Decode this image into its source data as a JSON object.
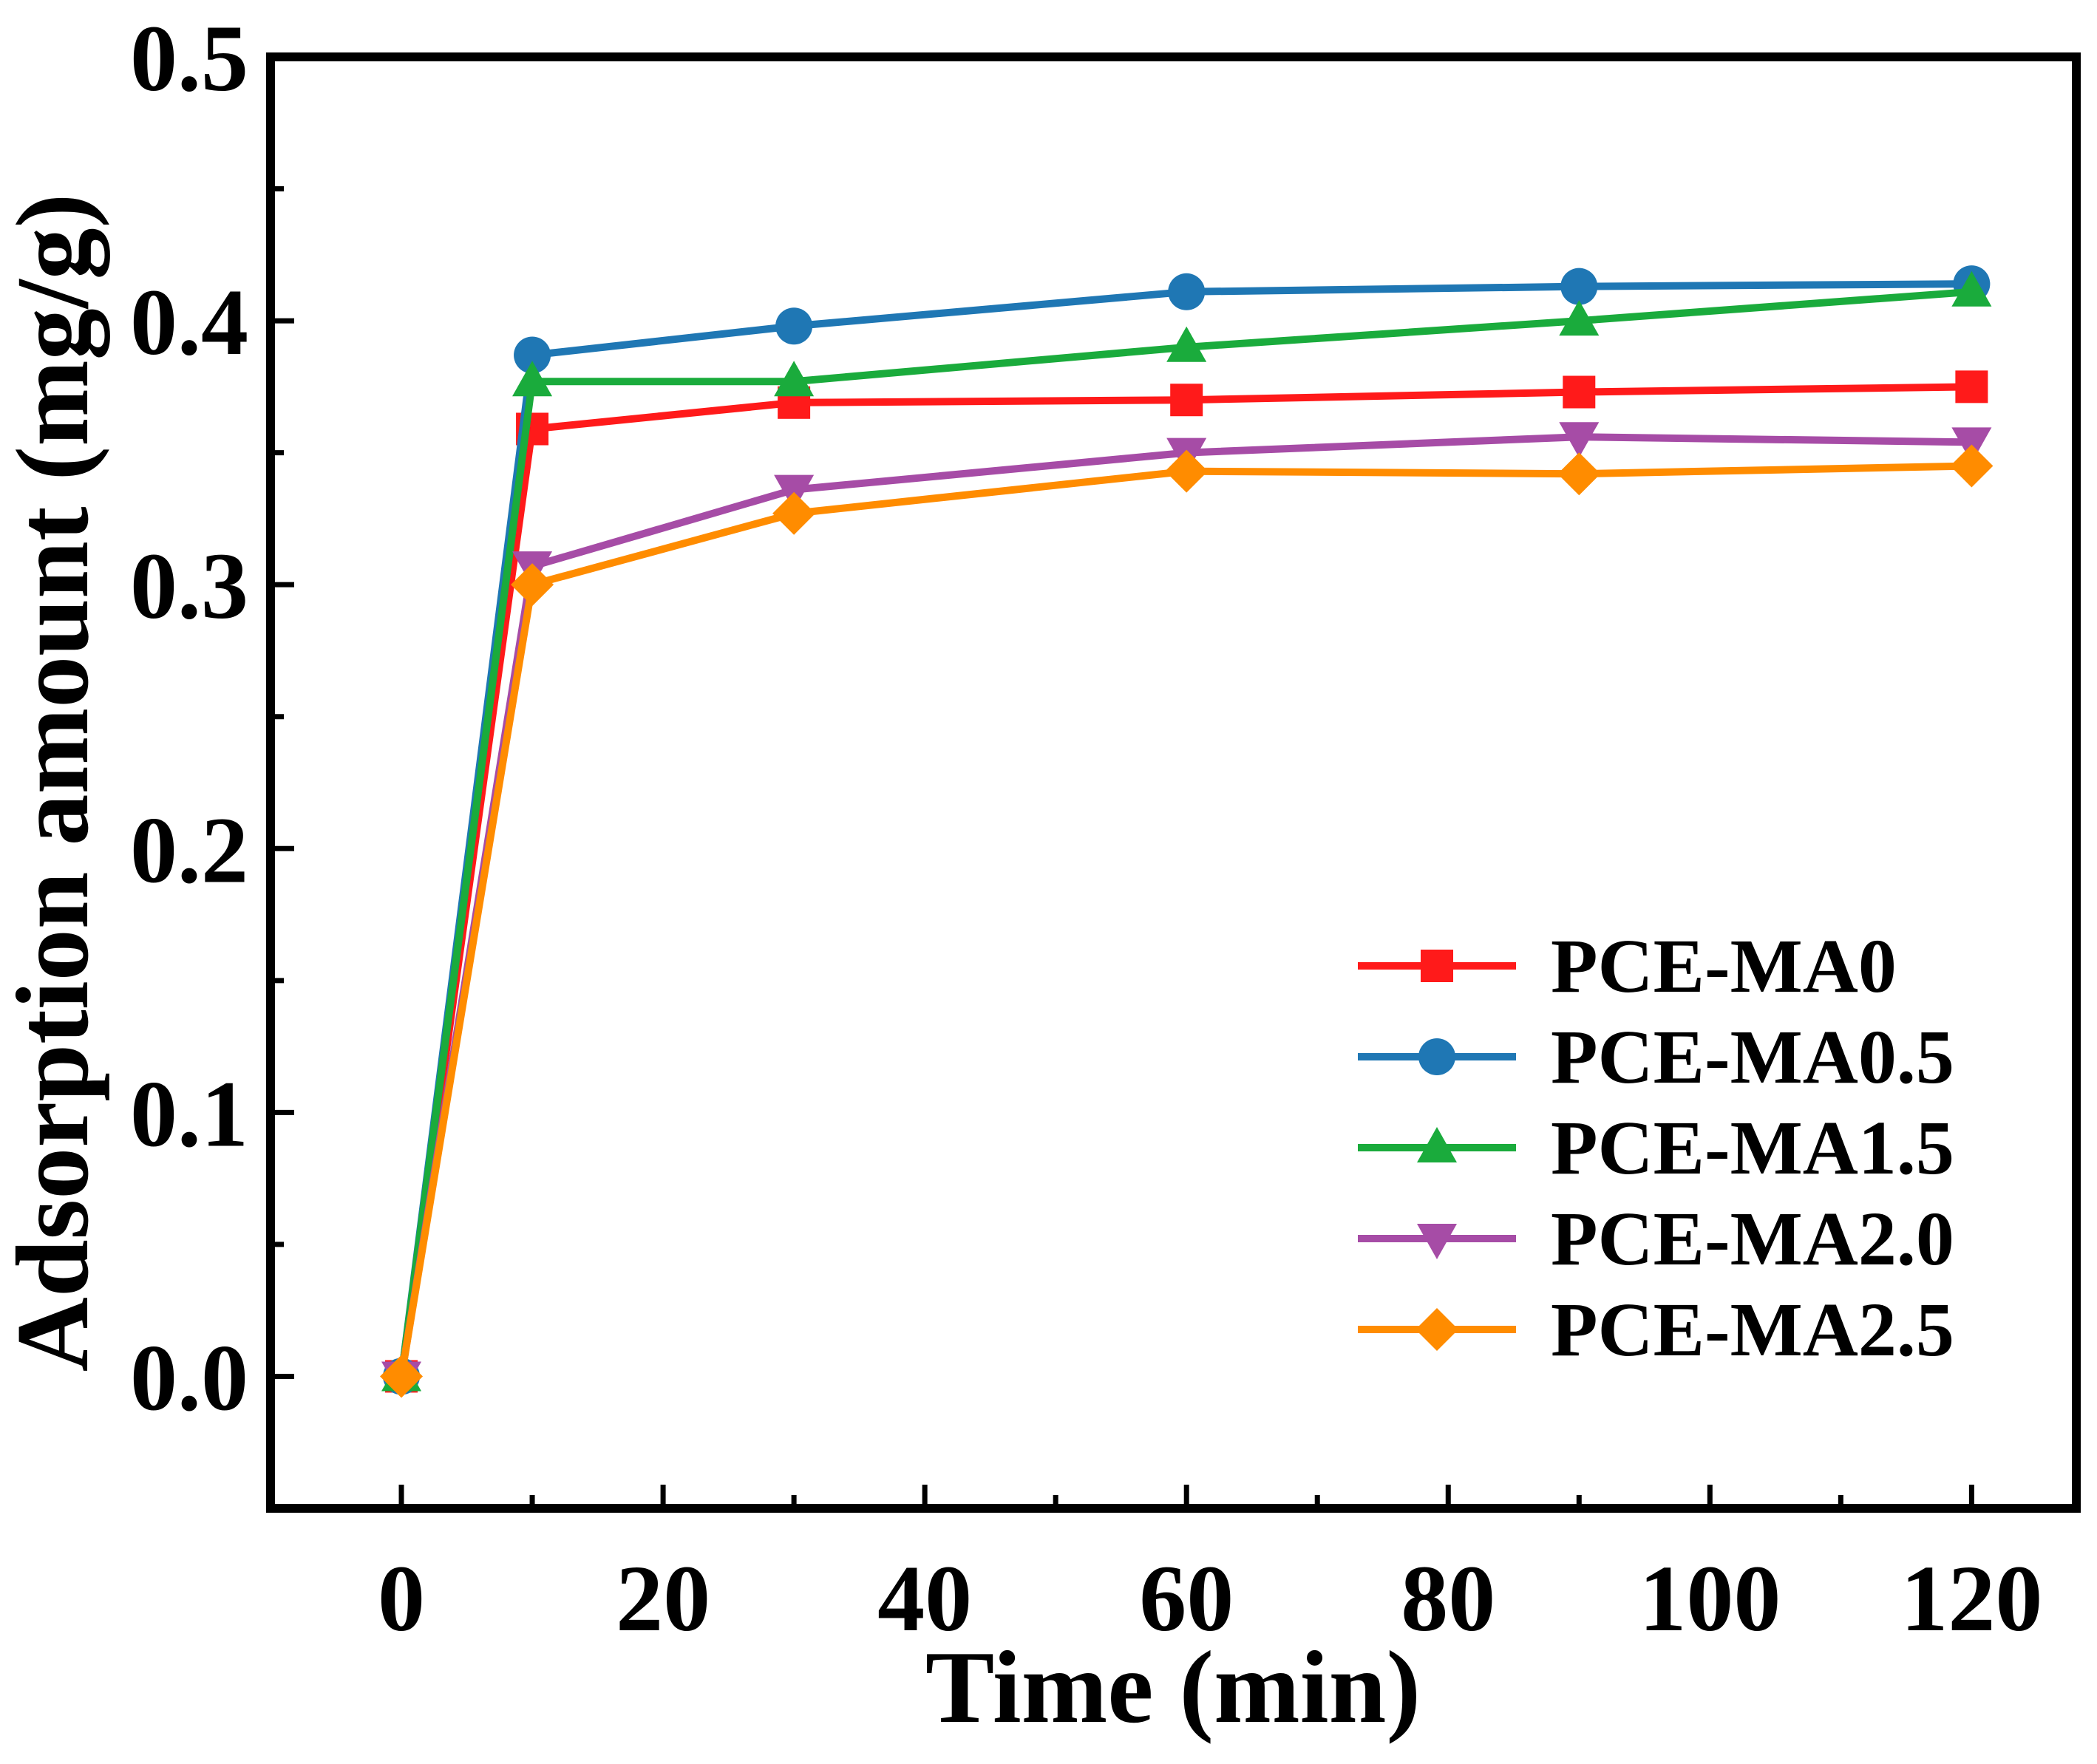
{
  "chart_data": {
    "type": "line",
    "title": "",
    "xlabel": "Time (min)",
    "ylabel": "Adsorption amount (mg/g)",
    "xlim": [
      -10,
      128
    ],
    "ylim": [
      -0.05,
      0.5
    ],
    "xticks": [
      0,
      20,
      40,
      60,
      80,
      100,
      120
    ],
    "xtick_labels": [
      "0",
      "20",
      "40",
      "60",
      "80",
      "100",
      "120"
    ],
    "yticks": [
      0.0,
      0.1,
      0.2,
      0.3,
      0.4,
      0.5
    ],
    "ytick_labels": [
      "0.0",
      "0.1",
      "0.2",
      "0.3",
      "0.4",
      "0.5"
    ],
    "grid": false,
    "legend_position": "bottom-right",
    "x": [
      0,
      10,
      30,
      60,
      90,
      120
    ],
    "series": [
      {
        "name": "PCE-MA0",
        "color": "#ff1a1a",
        "marker": "square",
        "values": [
          0.0,
          0.359,
          0.369,
          0.37,
          0.373,
          0.375
        ]
      },
      {
        "name": "PCE-MA0.5",
        "color": "#1f77b4",
        "marker": "circle",
        "values": [
          0.0,
          0.387,
          0.398,
          0.411,
          0.413,
          0.414
        ]
      },
      {
        "name": "PCE-MA1.5",
        "color": "#1aab3c",
        "marker": "triangle-up",
        "values": [
          0.0,
          0.377,
          0.377,
          0.39,
          0.4,
          0.411
        ]
      },
      {
        "name": "PCE-MA2.0",
        "color": "#a64ca6",
        "marker": "triangle-down",
        "values": [
          0.0,
          0.307,
          0.336,
          0.35,
          0.356,
          0.354
        ]
      },
      {
        "name": "PCE-MA2.5",
        "color": "#ff8c00",
        "marker": "diamond",
        "values": [
          0.0,
          0.3,
          0.327,
          0.343,
          0.342,
          0.345
        ]
      }
    ]
  }
}
